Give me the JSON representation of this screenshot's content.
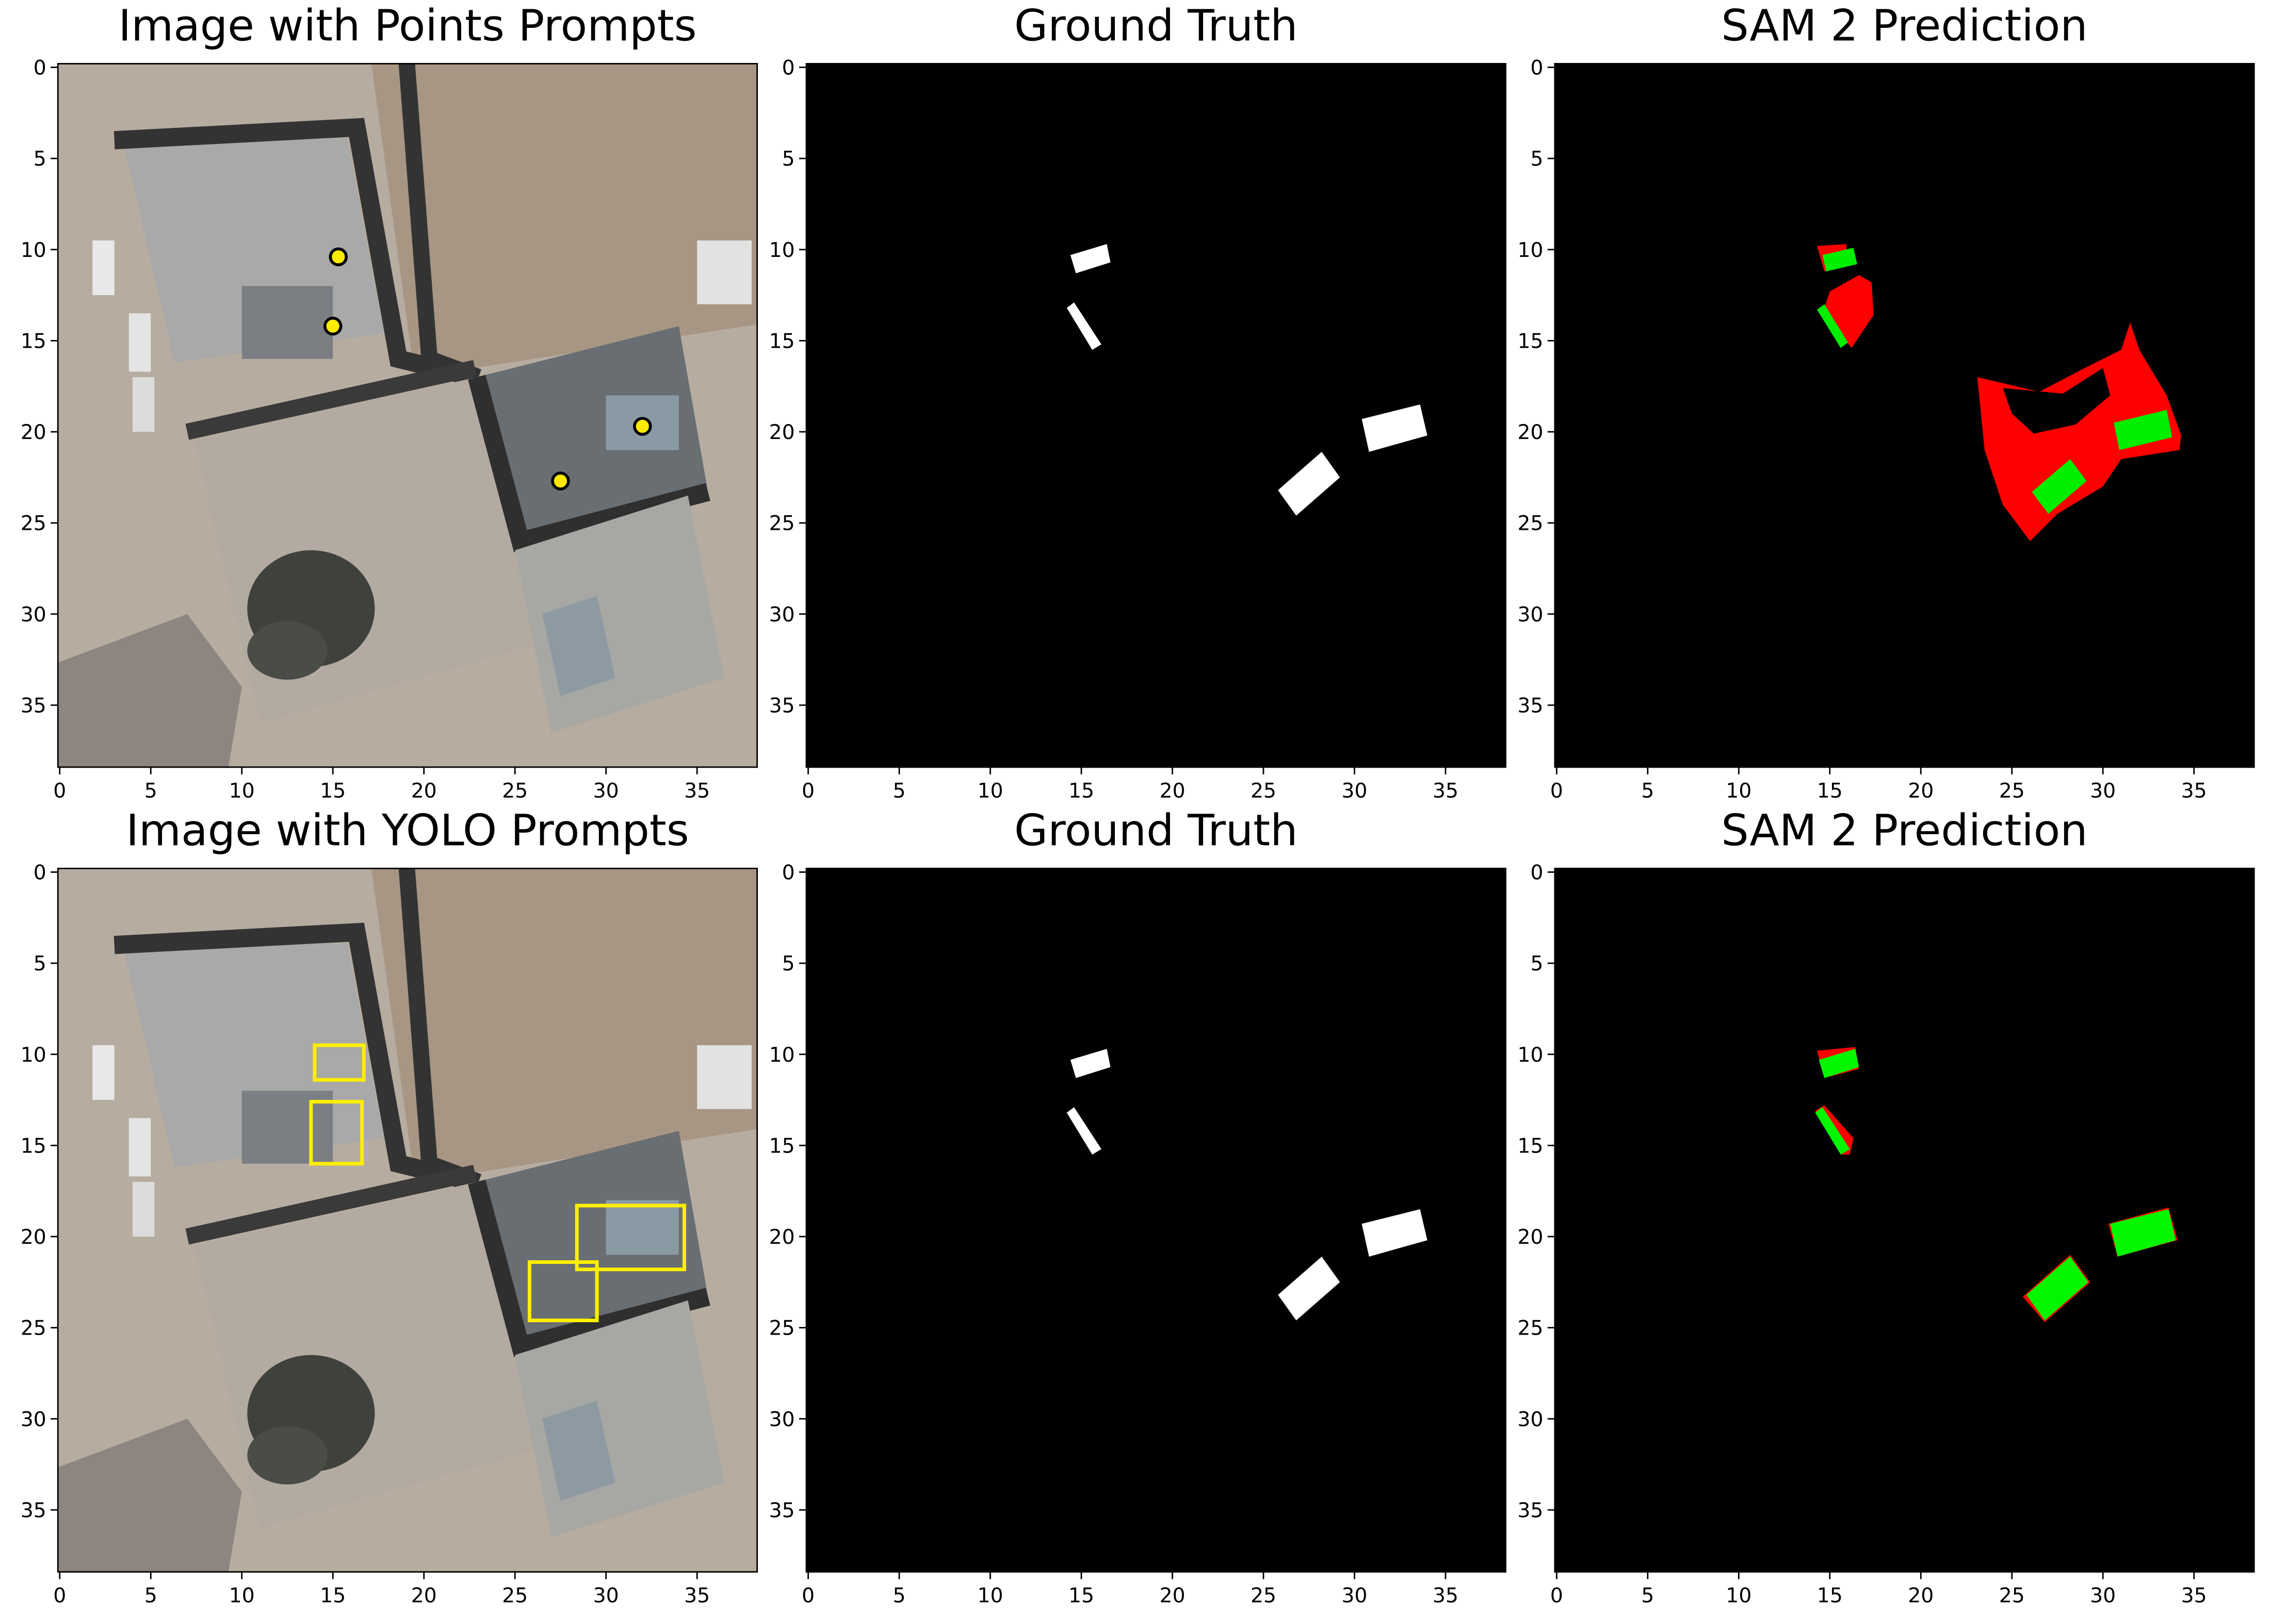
{
  "chart_data": [
    {
      "type": "image",
      "title": "Image with Points Prompts",
      "xlim": [
        -0.1,
        38.3
      ],
      "ylim": [
        38.4,
        -0.2
      ],
      "xticks": [
        0,
        5,
        10,
        15,
        20,
        25,
        30,
        35
      ],
      "yticks": [
        0,
        5,
        10,
        15,
        20,
        25,
        30,
        35
      ],
      "points": {
        "color": "#ffea00",
        "x": [
          15.3,
          15,
          32,
          27.5
        ],
        "y": [
          10.4,
          14.2,
          19.7,
          22.7
        ]
      }
    },
    {
      "type": "image",
      "title": "Ground Truth",
      "xlim": [
        -0.1,
        38.3
      ],
      "ylim": [
        38.4,
        -0.2
      ],
      "xticks": [
        0,
        5,
        10,
        15,
        20,
        25,
        30,
        35
      ],
      "yticks": [
        0,
        5,
        10,
        15,
        20,
        25,
        30,
        35
      ]
    },
    {
      "type": "image",
      "title": "SAM 2 Prediction",
      "xlim": [
        -0.1,
        38.3
      ],
      "ylim": [
        38.4,
        -0.2
      ],
      "xticks": [
        0,
        5,
        10,
        15,
        20,
        25,
        30,
        35
      ],
      "yticks": [
        0,
        5,
        10,
        15,
        20,
        25,
        30,
        35
      ]
    },
    {
      "type": "image",
      "title": "Image with YOLO Prompts",
      "xlim": [
        -0.1,
        38.3
      ],
      "ylim": [
        38.4,
        -0.2
      ],
      "xticks": [
        0,
        5,
        10,
        15,
        20,
        25,
        30,
        35
      ],
      "yticks": [
        0,
        5,
        10,
        15,
        20,
        25,
        30,
        35
      ],
      "boxes": {
        "color": "#ffee00",
        "values": [
          [
            14,
            9.5,
            16.7,
            11.4
          ],
          [
            13.8,
            12.6,
            16.6,
            16
          ],
          [
            28.4,
            18.3,
            34.3,
            21.8
          ],
          [
            25.8,
            21.4,
            29.5,
            24.6
          ]
        ]
      }
    },
    {
      "type": "image",
      "title": "Ground Truth",
      "xlim": [
        -0.1,
        38.3
      ],
      "ylim": [
        38.4,
        -0.2
      ],
      "xticks": [
        0,
        5,
        10,
        15,
        20,
        25,
        30,
        35
      ],
      "yticks": [
        0,
        5,
        10,
        15,
        20,
        25,
        30,
        35
      ]
    },
    {
      "type": "image",
      "title": "SAM 2 Prediction",
      "xlim": [
        -0.1,
        38.3
      ],
      "ylim": [
        38.4,
        -0.2
      ],
      "xticks": [
        0,
        5,
        10,
        15,
        20,
        25,
        30,
        35
      ],
      "yticks": [
        0,
        5,
        10,
        15,
        20,
        25,
        30,
        35
      ]
    }
  ]
}
